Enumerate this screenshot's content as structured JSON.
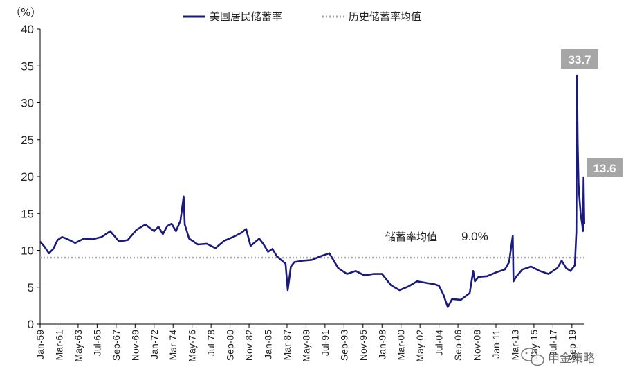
{
  "chart_data": {
    "type": "line",
    "ylabel": "（%）",
    "ylim": [
      0,
      40
    ],
    "yticks": [
      0,
      5,
      10,
      15,
      20,
      25,
      30,
      35,
      40
    ],
    "xticks": [
      "Jan-59",
      "Mar-61",
      "May-63",
      "Jul-65",
      "Sep-67",
      "Nov-69",
      "Jan-72",
      "Mar-74",
      "May-76",
      "Jul-78",
      "Sep-80",
      "Nov-82",
      "Jan-85",
      "Mar-87",
      "May-89",
      "Jul-91",
      "Sep-93",
      "Nov-95",
      "Jan-98",
      "Mar-00",
      "May-02",
      "Jul-04",
      "Sep-06",
      "Nov-08",
      "Jan-11",
      "Mar-13",
      "May-15",
      "Jul-17",
      "Sep-19"
    ],
    "legend": [
      {
        "label": "美国居民储蓄率",
        "style": "solid",
        "color": "#1a1a7e"
      },
      {
        "label": "历史储蓄率均值",
        "style": "dotted",
        "color": "#a6a6a6"
      }
    ],
    "series": [
      {
        "name": "美国居民储蓄率",
        "color": "#1a1a7e",
        "x": [
          1959.0,
          1959.5,
          1960.0,
          1960.5,
          1961.0,
          1961.5,
          1962.0,
          1963.0,
          1964.0,
          1965.0,
          1966.0,
          1967.0,
          1968.0,
          1969.0,
          1970.0,
          1971.0,
          1972.0,
          1972.5,
          1973.0,
          1973.5,
          1974.0,
          1974.5,
          1975.0,
          1975.37,
          1975.5,
          1976.0,
          1977.0,
          1978.0,
          1979.0,
          1980.0,
          1981.0,
          1982.0,
          1982.5,
          1983.0,
          1984.0,
          1984.5,
          1985.0,
          1985.5,
          1986.0,
          1987.0,
          1987.25,
          1987.6,
          1988.0,
          1989.0,
          1990.0,
          1991.0,
          1992.0,
          1993.0,
          1994.0,
          1995.0,
          1996.0,
          1997.0,
          1998.0,
          1999.0,
          2000.0,
          2001.0,
          2002.0,
          2003.0,
          2004.0,
          2004.5,
          2005.0,
          2005.5,
          2006.0,
          2007.0,
          2008.0,
          2008.4,
          2008.6,
          2009.0,
          2010.0,
          2011.0,
          2012.0,
          2012.5,
          2012.92,
          2013.0,
          2013.3,
          2014.0,
          2015.0,
          2016.0,
          2017.0,
          2018.0,
          2018.5,
          2019.0,
          2019.5,
          2020.0,
          2020.17,
          2020.25,
          2020.33,
          2020.42,
          2020.5,
          2020.67,
          2020.83,
          2020.92,
          2021.0,
          2021.08
        ],
        "values": [
          11.2,
          10.5,
          9.6,
          10.2,
          11.4,
          11.8,
          11.6,
          11.0,
          11.6,
          11.5,
          11.8,
          12.6,
          11.2,
          11.4,
          12.8,
          13.5,
          12.6,
          13.2,
          12.2,
          13.3,
          13.6,
          12.6,
          14.0,
          17.3,
          13.5,
          11.6,
          10.8,
          10.9,
          10.3,
          11.3,
          11.8,
          12.4,
          12.9,
          10.6,
          11.6,
          10.8,
          9.8,
          10.2,
          9.2,
          8.2,
          4.6,
          7.8,
          8.4,
          8.6,
          8.7,
          9.2,
          9.6,
          7.6,
          6.8,
          7.2,
          6.6,
          6.8,
          6.8,
          5.3,
          4.6,
          5.1,
          5.8,
          5.6,
          5.4,
          5.2,
          4.0,
          2.3,
          3.4,
          3.3,
          4.2,
          7.2,
          5.8,
          6.4,
          6.5,
          7.0,
          7.4,
          8.4,
          12.0,
          5.8,
          6.4,
          7.4,
          7.8,
          7.2,
          6.8,
          7.6,
          8.6,
          7.6,
          7.2,
          8.0,
          12.5,
          33.7,
          24.5,
          19.0,
          17.5,
          14.8,
          13.6,
          12.6,
          19.9,
          13.6
        ]
      },
      {
        "name": "历史储蓄率均值",
        "color": "#a6a6a6",
        "x": [
          1959.0,
          2021.1
        ],
        "values": [
          9.0,
          9.0
        ]
      }
    ],
    "annotations": [
      {
        "label": "储蓄率均值",
        "value_text": "9.0%"
      },
      {
        "value_text": "33.7",
        "value": 33.7
      },
      {
        "value_text": "13.6",
        "value": 13.6
      }
    ]
  },
  "watermark": {
    "text": "申金策略",
    "icon": "wechat-icon"
  }
}
